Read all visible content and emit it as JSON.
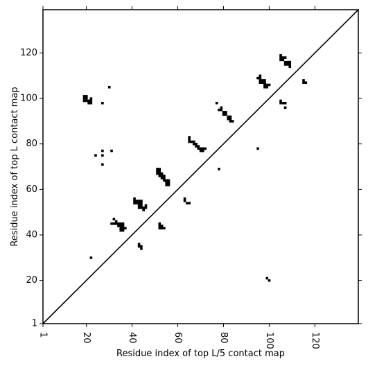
{
  "chart_data": {
    "type": "heatmap",
    "title": "",
    "xlabel": "Residue index of top L/5 contact map",
    "ylabel": "Residue index of top L contact map",
    "xlim": [
      1,
      139
    ],
    "ylim": [
      1,
      139
    ],
    "x_ticks": [
      1,
      20,
      40,
      60,
      80,
      100,
      120
    ],
    "y_ticks": [
      1,
      20,
      40,
      60,
      80,
      100,
      120
    ],
    "x_tick_labels": [
      "1",
      "20",
      "40",
      "60",
      "80",
      "100",
      "120"
    ],
    "y_tick_labels": [
      "1",
      "20",
      "40",
      "60",
      "80",
      "100",
      "120"
    ],
    "diagonal_line": true,
    "grid": false,
    "cell_color": "#000000",
    "upper_triangle_contacts_topL": [
      [
        19,
        99
      ],
      [
        19,
        100
      ],
      [
        19,
        101
      ],
      [
        20,
        99
      ],
      [
        20,
        100
      ],
      [
        20,
        101
      ],
      [
        21,
        98
      ],
      [
        21,
        99
      ],
      [
        22,
        98
      ],
      [
        22,
        99
      ],
      [
        22,
        100
      ],
      [
        27,
        98
      ],
      [
        30,
        105
      ],
      [
        24,
        75
      ],
      [
        27,
        71
      ],
      [
        27,
        75
      ],
      [
        27,
        77
      ],
      [
        31,
        77
      ],
      [
        22,
        30
      ],
      [
        31,
        45
      ],
      [
        32,
        45
      ],
      [
        32,
        47
      ],
      [
        33,
        45
      ],
      [
        33,
        46
      ],
      [
        34,
        44
      ],
      [
        34,
        45
      ],
      [
        35,
        42
      ],
      [
        35,
        43
      ],
      [
        35,
        44
      ],
      [
        35,
        45
      ],
      [
        36,
        42
      ],
      [
        36,
        43
      ],
      [
        36,
        44
      ],
      [
        36,
        45
      ],
      [
        37,
        43
      ],
      [
        41,
        54
      ],
      [
        41,
        55
      ],
      [
        41,
        56
      ],
      [
        42,
        54
      ],
      [
        42,
        55
      ],
      [
        43,
        52
      ],
      [
        43,
        53
      ],
      [
        43,
        54
      ],
      [
        43,
        55
      ],
      [
        44,
        52
      ],
      [
        44,
        53
      ],
      [
        44,
        54
      ],
      [
        44,
        55
      ],
      [
        45,
        51
      ],
      [
        45,
        52
      ],
      [
        46,
        52
      ],
      [
        46,
        53
      ],
      [
        43,
        35
      ],
      [
        43,
        36
      ],
      [
        44,
        34
      ],
      [
        44,
        35
      ],
      [
        51,
        67
      ],
      [
        51,
        68
      ],
      [
        51,
        69
      ],
      [
        52,
        66
      ],
      [
        52,
        67
      ],
      [
        52,
        68
      ],
      [
        52,
        69
      ],
      [
        53,
        65
      ],
      [
        53,
        66
      ],
      [
        53,
        67
      ],
      [
        54,
        64
      ],
      [
        54,
        65
      ],
      [
        54,
        66
      ],
      [
        55,
        62
      ],
      [
        55,
        63
      ],
      [
        55,
        64
      ],
      [
        56,
        62
      ],
      [
        56,
        63
      ],
      [
        56,
        64
      ],
      [
        52,
        43
      ],
      [
        52,
        44
      ],
      [
        52,
        45
      ],
      [
        53,
        43
      ],
      [
        53,
        44
      ],
      [
        54,
        43
      ],
      [
        63,
        55
      ],
      [
        63,
        56
      ],
      [
        64,
        54
      ],
      [
        65,
        54
      ],
      [
        65,
        81
      ],
      [
        65,
        82
      ],
      [
        65,
        83
      ],
      [
        66,
        81
      ],
      [
        67,
        80
      ],
      [
        67,
        81
      ],
      [
        68,
        79
      ],
      [
        68,
        80
      ],
      [
        69,
        78
      ],
      [
        69,
        79
      ],
      [
        70,
        77
      ],
      [
        70,
        78
      ],
      [
        71,
        77
      ],
      [
        71,
        78
      ],
      [
        72,
        78
      ],
      [
        77,
        98
      ],
      [
        78,
        95
      ],
      [
        79,
        95
      ],
      [
        79,
        96
      ],
      [
        80,
        93
      ],
      [
        80,
        94
      ],
      [
        81,
        93
      ],
      [
        81,
        94
      ],
      [
        82,
        91
      ],
      [
        82,
        92
      ],
      [
        83,
        90
      ],
      [
        83,
        91
      ],
      [
        83,
        92
      ],
      [
        84,
        90
      ],
      [
        78,
        69
      ],
      [
        95,
        78
      ],
      [
        95,
        109
      ],
      [
        96,
        107
      ],
      [
        96,
        108
      ],
      [
        96,
        109
      ],
      [
        96,
        110
      ],
      [
        97,
        107
      ],
      [
        97,
        108
      ],
      [
        98,
        105
      ],
      [
        98,
        106
      ],
      [
        98,
        107
      ],
      [
        98,
        108
      ],
      [
        99,
        105
      ],
      [
        99,
        106
      ],
      [
        100,
        106
      ],
      [
        99,
        21
      ],
      [
        100,
        20
      ],
      [
        105,
        117
      ],
      [
        105,
        118
      ],
      [
        105,
        119
      ],
      [
        106,
        117
      ],
      [
        106,
        118
      ],
      [
        107,
        115
      ],
      [
        107,
        116
      ],
      [
        107,
        118
      ],
      [
        108,
        115
      ],
      [
        108,
        116
      ],
      [
        109,
        114
      ],
      [
        109,
        115
      ],
      [
        109,
        116
      ],
      [
        105,
        98
      ],
      [
        105,
        99
      ],
      [
        106,
        98
      ],
      [
        107,
        96
      ],
      [
        107,
        98
      ],
      [
        115,
        107
      ],
      [
        115,
        108
      ],
      [
        116,
        107
      ]
    ]
  }
}
